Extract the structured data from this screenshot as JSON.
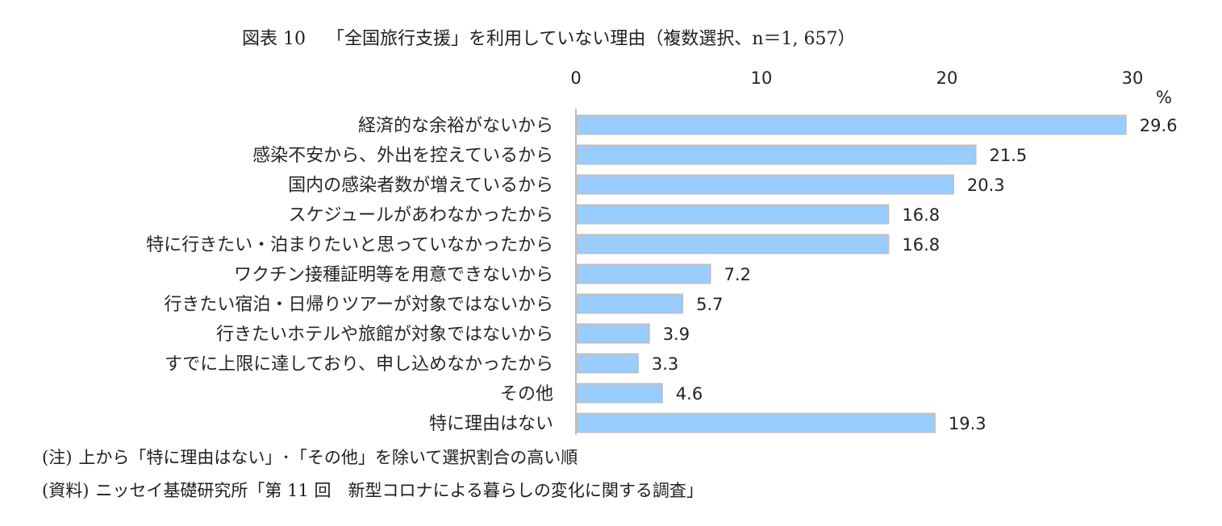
{
  "title": {
    "figure_no": "図表 10",
    "text": "「全国旅行支援」を利用していない理由（複数選択、n＝1, 657）"
  },
  "notes": {
    "note_head": "(注)",
    "note_text": "上から「特に理由はない」･「その他」を除いて選択割合の高い順",
    "source_head": "(資料)",
    "source_text": "ニッセイ基礎研究所「第 11 回　新型コロナによる暮らしの変化に関する調査」"
  },
  "chart_data": {
    "type": "bar",
    "orientation": "horizontal",
    "title": "「全国旅行支援」を利用していない理由（複数選択、n＝1, 657）",
    "xlabel": "",
    "ylabel": "",
    "unit": "%",
    "xlim": [
      0,
      30
    ],
    "ticks": [
      "0",
      "10",
      "20",
      "30"
    ],
    "grid": false,
    "bar_color": "#99CCFF",
    "bar_edge_color": "#BFBFBF",
    "categories": [
      "経済的な余裕がないから",
      "感染不安から、外出を控えているから",
      "国内の感染者数が増えているから",
      "スケジュールがあわなかったから",
      "特に行きたい・泊まりたいと思っていなかったから",
      "ワクチン接種証明等を用意できないから",
      "行きたい宿泊・日帰りツアーが対象ではないから",
      "行きたいホテルや旅館が対象ではないから",
      "すでに上限に達しており、申し込めなかったから",
      "その他",
      "特に理由はない"
    ],
    "values": [
      29.6,
      21.5,
      20.3,
      16.8,
      16.8,
      7.2,
      5.7,
      3.9,
      3.3,
      4.6,
      19.3
    ],
    "value_labels": [
      "29.6",
      "21.5",
      "20.3",
      "16.8",
      "16.8",
      "7.2",
      "5.7",
      "3.9",
      "3.3",
      "4.6",
      "19.3"
    ]
  }
}
